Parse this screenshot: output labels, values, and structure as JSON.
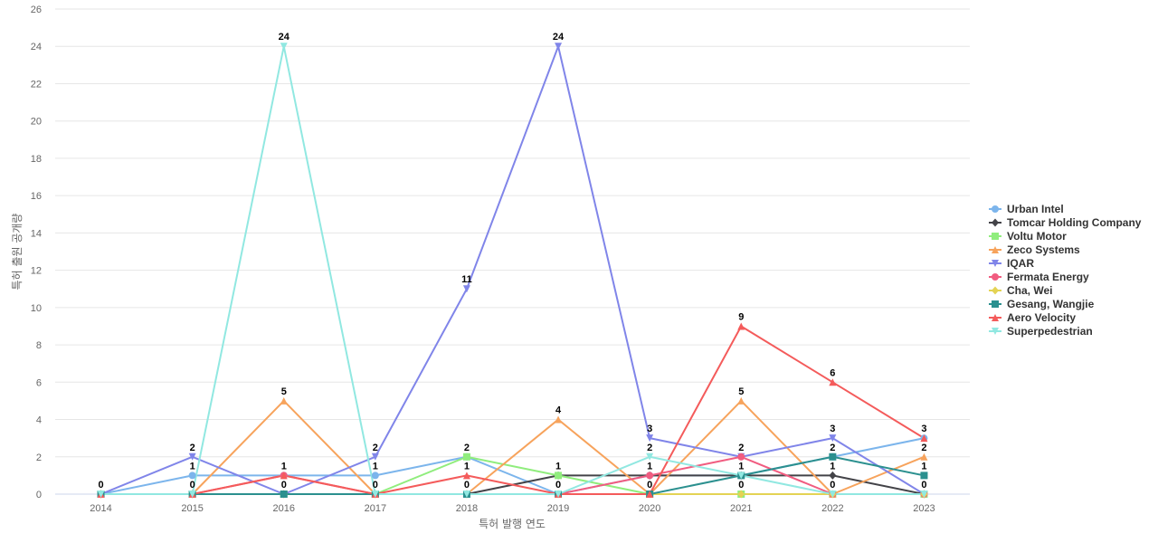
{
  "chart_data": {
    "type": "line",
    "xlabel": "특허 발행 연도",
    "ylabel": "특허 출원 공개량",
    "ylim": [
      0,
      26
    ],
    "yticks": [
      0,
      2,
      4,
      6,
      8,
      10,
      12,
      14,
      16,
      18,
      20,
      22,
      24,
      26
    ],
    "x": [
      "2014",
      "2015",
      "2016",
      "2017",
      "2018",
      "2019",
      "2020",
      "2021",
      "2022",
      "2023"
    ],
    "grid": true,
    "legend_position": "right",
    "series": [
      {
        "name": "Urban Intel",
        "color": "#7cb5ec",
        "marker": "circle",
        "values": [
          0,
          1,
          1,
          1,
          2,
          0,
          1,
          1,
          2,
          3
        ]
      },
      {
        "name": "Tomcar Holding Company",
        "color": "#434348",
        "marker": "diamond",
        "values": [
          0,
          0,
          0,
          0,
          0,
          1,
          1,
          1,
          1,
          0
        ]
      },
      {
        "name": "Voltu Motor",
        "color": "#90ed7d",
        "marker": "square",
        "values": [
          0,
          0,
          0,
          0,
          2,
          1,
          0,
          0,
          0,
          0
        ]
      },
      {
        "name": "Zeco Systems",
        "color": "#f7a35c",
        "marker": "triangle",
        "values": [
          0,
          0,
          5,
          0,
          0,
          4,
          0,
          5,
          0,
          2
        ]
      },
      {
        "name": "IQAR",
        "color": "#8085e9",
        "marker": "triangle-down",
        "values": [
          0,
          2,
          0,
          2,
          11,
          24,
          3,
          2,
          3,
          0
        ]
      },
      {
        "name": "Fermata Energy",
        "color": "#f15c80",
        "marker": "circle",
        "values": [
          0,
          0,
          1,
          0,
          0,
          0,
          1,
          2,
          0,
          0
        ]
      },
      {
        "name": "Cha, Wei",
        "color": "#e4d354",
        "marker": "diamond",
        "values": [
          0,
          0,
          0,
          0,
          0,
          0,
          0,
          0,
          0,
          0
        ]
      },
      {
        "name": "Gesang, Wangjie",
        "color": "#2b908f",
        "marker": "square",
        "values": [
          0,
          0,
          0,
          0,
          0,
          0,
          0,
          1,
          2,
          1
        ]
      },
      {
        "name": "Aero Velocity",
        "color": "#f45b5b",
        "marker": "triangle",
        "values": [
          0,
          0,
          1,
          0,
          1,
          0,
          0,
          9,
          6,
          3
        ]
      },
      {
        "name": "Superpedestrian",
        "color": "#91e8e1",
        "marker": "triangle-down",
        "values": [
          0,
          0,
          24,
          0,
          0,
          0,
          2,
          1,
          0,
          0
        ]
      }
    ],
    "data_labels": [
      {
        "x": "2014",
        "values": [
          0
        ]
      },
      {
        "x": "2015",
        "values": [
          2,
          1,
          0
        ]
      },
      {
        "x": "2016",
        "values": [
          24,
          5,
          1,
          0
        ]
      },
      {
        "x": "2017",
        "values": [
          2,
          1,
          0
        ]
      },
      {
        "x": "2018",
        "values": [
          11,
          2,
          1,
          0
        ]
      },
      {
        "x": "2019",
        "values": [
          24,
          4,
          1,
          0
        ]
      },
      {
        "x": "2020",
        "values": [
          3,
          2,
          1,
          0
        ]
      },
      {
        "x": "2021",
        "values": [
          9,
          5,
          2,
          1,
          0
        ]
      },
      {
        "x": "2022",
        "values": [
          6,
          3,
          2,
          1,
          0
        ]
      },
      {
        "x": "2023",
        "values": [
          3,
          2,
          1,
          0
        ]
      }
    ]
  }
}
